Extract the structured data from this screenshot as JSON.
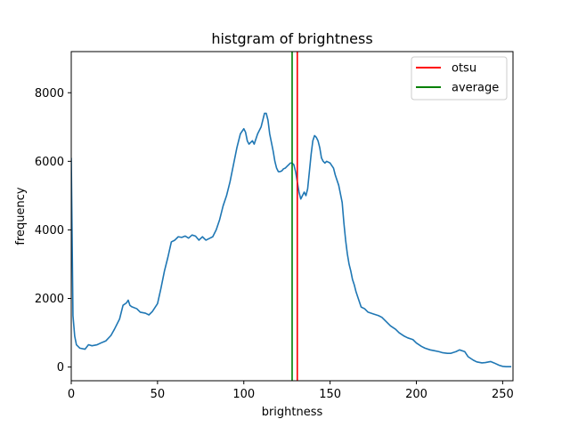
{
  "chart_data": {
    "type": "line",
    "title": "histgram of brightness",
    "xlabel": "brightness",
    "ylabel": "frequency",
    "xlim": [
      0,
      256
    ],
    "ylim": [
      -400,
      9200
    ],
    "xticks": [
      0,
      50,
      100,
      150,
      200,
      250
    ],
    "yticks": [
      0,
      2000,
      4000,
      6000,
      8000
    ],
    "grid": false,
    "legend": "top-right",
    "series": [
      {
        "name": "",
        "color": "#1f77b4",
        "x": [
          0,
          1,
          2,
          3,
          5,
          8,
          10,
          12,
          15,
          18,
          20,
          23,
          25,
          28,
          30,
          32,
          33,
          34,
          35,
          38,
          40,
          43,
          45,
          47,
          50,
          52,
          54,
          56,
          58,
          60,
          62,
          64,
          66,
          68,
          70,
          72,
          74,
          76,
          78,
          80,
          82,
          84,
          86,
          88,
          90,
          92,
          94,
          96,
          98,
          100,
          101,
          102,
          103,
          105,
          106,
          108,
          110,
          112,
          113,
          114,
          115,
          117,
          118,
          119,
          120,
          121,
          122,
          123,
          124,
          125,
          126,
          127,
          128,
          129,
          130,
          131,
          132,
          133,
          134,
          135,
          136,
          137,
          138,
          139,
          140,
          141,
          142,
          143,
          144,
          145,
          146,
          147,
          148,
          150,
          152,
          153,
          155,
          157,
          158,
          159,
          160,
          161,
          162,
          163,
          164,
          165,
          166,
          167,
          168,
          170,
          172,
          175,
          178,
          180,
          183,
          185,
          188,
          190,
          193,
          195,
          198,
          200,
          203,
          205,
          208,
          210,
          213,
          215,
          218,
          220,
          223,
          225,
          228,
          230,
          233,
          235,
          238,
          240,
          243,
          245,
          248,
          250,
          252,
          255
        ],
        "values": [
          6100,
          1500,
          900,
          650,
          550,
          520,
          650,
          620,
          650,
          720,
          760,
          920,
          1100,
          1400,
          1800,
          1870,
          1950,
          1800,
          1760,
          1700,
          1600,
          1570,
          1520,
          1620,
          1850,
          2300,
          2800,
          3200,
          3650,
          3700,
          3800,
          3780,
          3820,
          3760,
          3850,
          3820,
          3700,
          3800,
          3700,
          3750,
          3800,
          4000,
          4300,
          4700,
          5000,
          5400,
          5900,
          6400,
          6800,
          6950,
          6850,
          6600,
          6500,
          6600,
          6500,
          6800,
          7000,
          7400,
          7400,
          7200,
          6800,
          6300,
          6000,
          5800,
          5700,
          5700,
          5720,
          5780,
          5800,
          5850,
          5900,
          5950,
          5950,
          5900,
          5700,
          5400,
          5100,
          4900,
          5000,
          5100,
          5000,
          5200,
          5700,
          6200,
          6600,
          6750,
          6700,
          6600,
          6400,
          6100,
          6000,
          5950,
          6000,
          5950,
          5800,
          5600,
          5300,
          4800,
          4200,
          3700,
          3300,
          3000,
          2800,
          2550,
          2400,
          2200,
          2050,
          1900,
          1750,
          1700,
          1600,
          1550,
          1500,
          1450,
          1300,
          1200,
          1100,
          1000,
          900,
          850,
          800,
          700,
          600,
          550,
          500,
          480,
          450,
          420,
          400,
          400,
          450,
          500,
          450,
          300,
          200,
          150,
          120,
          130,
          160,
          120,
          50,
          20,
          10,
          10
        ]
      }
    ],
    "vlines": [
      {
        "name": "otsu",
        "color": "#ff0000",
        "x": 131
      },
      {
        "name": "average",
        "color": "#008000",
        "x": 128
      }
    ]
  }
}
